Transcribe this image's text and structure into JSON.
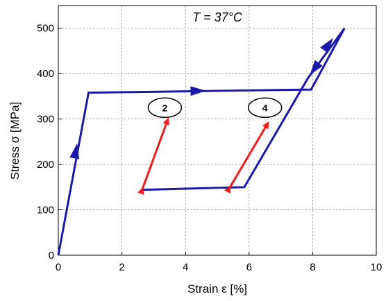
{
  "chart_data": {
    "type": "line",
    "title": "T = 37°C",
    "xlabel": "Strain ε [%]",
    "ylabel": "Stress σ [MPa]",
    "xlim": [
      0,
      10
    ],
    "ylim": [
      0,
      550
    ],
    "x_ticks": [
      "0",
      "2",
      "4",
      "6",
      "8",
      "10"
    ],
    "y_ticks": [
      "0",
      "100",
      "200",
      "300",
      "400",
      "500"
    ],
    "x_tick_values": [
      0,
      2,
      4,
      6,
      8,
      10
    ],
    "y_tick_values": [
      0,
      100,
      200,
      300,
      400,
      500
    ],
    "grid": true,
    "colors": {
      "curve": "#1a1aa8",
      "annotation": "#ee1c1c",
      "grid": "#9a9a9a"
    },
    "series": [
      {
        "x": [
          0,
          0.95,
          7.95,
          9.0,
          7.85,
          5.85,
          2.6
        ],
        "y": [
          0,
          358,
          365,
          500,
          390,
          150,
          144
        ]
      }
    ],
    "direction_arrows": [
      {
        "x": 0.55,
        "y": 230,
        "dir": "up"
      },
      {
        "x": 4.4,
        "y": 362,
        "dir": "right"
      },
      {
        "x": 8.5,
        "y": 465,
        "dir": "up"
      },
      {
        "x": 8.05,
        "y": 410,
        "dir": "down"
      }
    ],
    "annotations": [
      {
        "label": "2",
        "circle_x": 3.35,
        "circle_y": 325,
        "arrow_from": [
          2.65,
          147
        ],
        "arrow_to": [
          3.45,
          300
        ]
      },
      {
        "label": "4",
        "circle_x": 6.5,
        "circle_y": 325,
        "arrow_from": [
          5.4,
          150
        ],
        "arrow_to": [
          6.6,
          292
        ]
      }
    ]
  }
}
